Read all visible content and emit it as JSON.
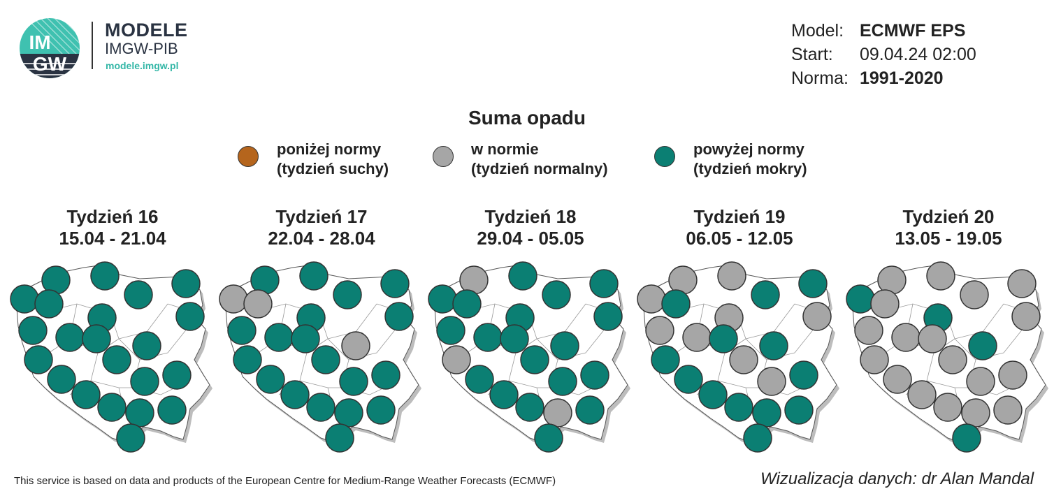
{
  "logo": {
    "badge_text_top": "IM",
    "badge_text_bottom": "GW",
    "title": "MODELE",
    "subtitle": "IMGW-PIB",
    "url": "modele.imgw.pl"
  },
  "meta": {
    "model_label": "Model:",
    "model_value": "ECMWF EPS",
    "start_label": "Start:",
    "start_value": "09.04.24 02:00",
    "norm_label": "Norma:",
    "norm_value": "1991-2020"
  },
  "title": "Suma opadu",
  "legend": [
    {
      "line1": "poniżej normy",
      "line2": "(tydzień suchy)",
      "color": "#b5651d"
    },
    {
      "line1": "w normie",
      "line2": "(tydzień normalny)",
      "color": "#a6a6a6"
    },
    {
      "line1": "powyżej normy",
      "line2": "(tydzień mokry)",
      "color": "#0b7f73"
    }
  ],
  "colors": {
    "dry": "#b5651d",
    "normal": "#a6a6a6",
    "wet": "#0b7f73",
    "map_fill": "#ffffff",
    "map_border": "#555555"
  },
  "weeks": [
    {
      "label": "Tydzień 16",
      "dates": "15.04 - 21.04",
      "regions": [
        "wet",
        "wet",
        "wet",
        "wet",
        "wet",
        "wet",
        "wet",
        "wet",
        "wet",
        "wet",
        "wet",
        "wet",
        "wet",
        "wet",
        "wet",
        "wet",
        "wet",
        "wet",
        "wet",
        "wet",
        "wet",
        "wet"
      ]
    },
    {
      "label": "Tydzień 17",
      "dates": "22.04 - 28.04",
      "regions": [
        "wet",
        "wet",
        "wet",
        "wet",
        "normal",
        "wet",
        "wet",
        "wet",
        "wet",
        "normal",
        "wet",
        "wet",
        "wet",
        "wet",
        "wet",
        "wet",
        "wet",
        "wet",
        "wet",
        "wet",
        "wet",
        "normal"
      ]
    },
    {
      "label": "Tydzień 18",
      "dates": "29.04 - 05.05",
      "regions": [
        "normal",
        "wet",
        "wet",
        "wet",
        "wet",
        "wet",
        "wet",
        "wet",
        "wet",
        "wet",
        "wet",
        "normal",
        "wet",
        "wet",
        "wet",
        "wet",
        "wet",
        "normal",
        "wet",
        "wet",
        "wet",
        "wet"
      ]
    },
    {
      "label": "Tydzień 19",
      "dates": "06.05 - 12.05",
      "regions": [
        "normal",
        "normal",
        "wet",
        "wet",
        "normal",
        "normal",
        "normal",
        "normal",
        "normal",
        "wet",
        "normal",
        "wet",
        "wet",
        "normal",
        "wet",
        "wet",
        "wet",
        "wet",
        "wet",
        "wet",
        "wet",
        "wet"
      ]
    },
    {
      "label": "Tydzień 20",
      "dates": "13.05 - 19.05",
      "regions": [
        "normal",
        "normal",
        "normal",
        "normal",
        "wet",
        "normal",
        "wet",
        "normal",
        "normal",
        "wet",
        "normal",
        "normal",
        "normal",
        "normal",
        "normal",
        "normal",
        "normal",
        "normal",
        "normal",
        "wet",
        "normal",
        "normal"
      ]
    }
  ],
  "footer": {
    "left": "This service is based on data and products of the European Centre for Medium-Range Weather Forecasts (ECMWF)",
    "right": "Wizualizacja danych: dr Alan Mandal"
  }
}
